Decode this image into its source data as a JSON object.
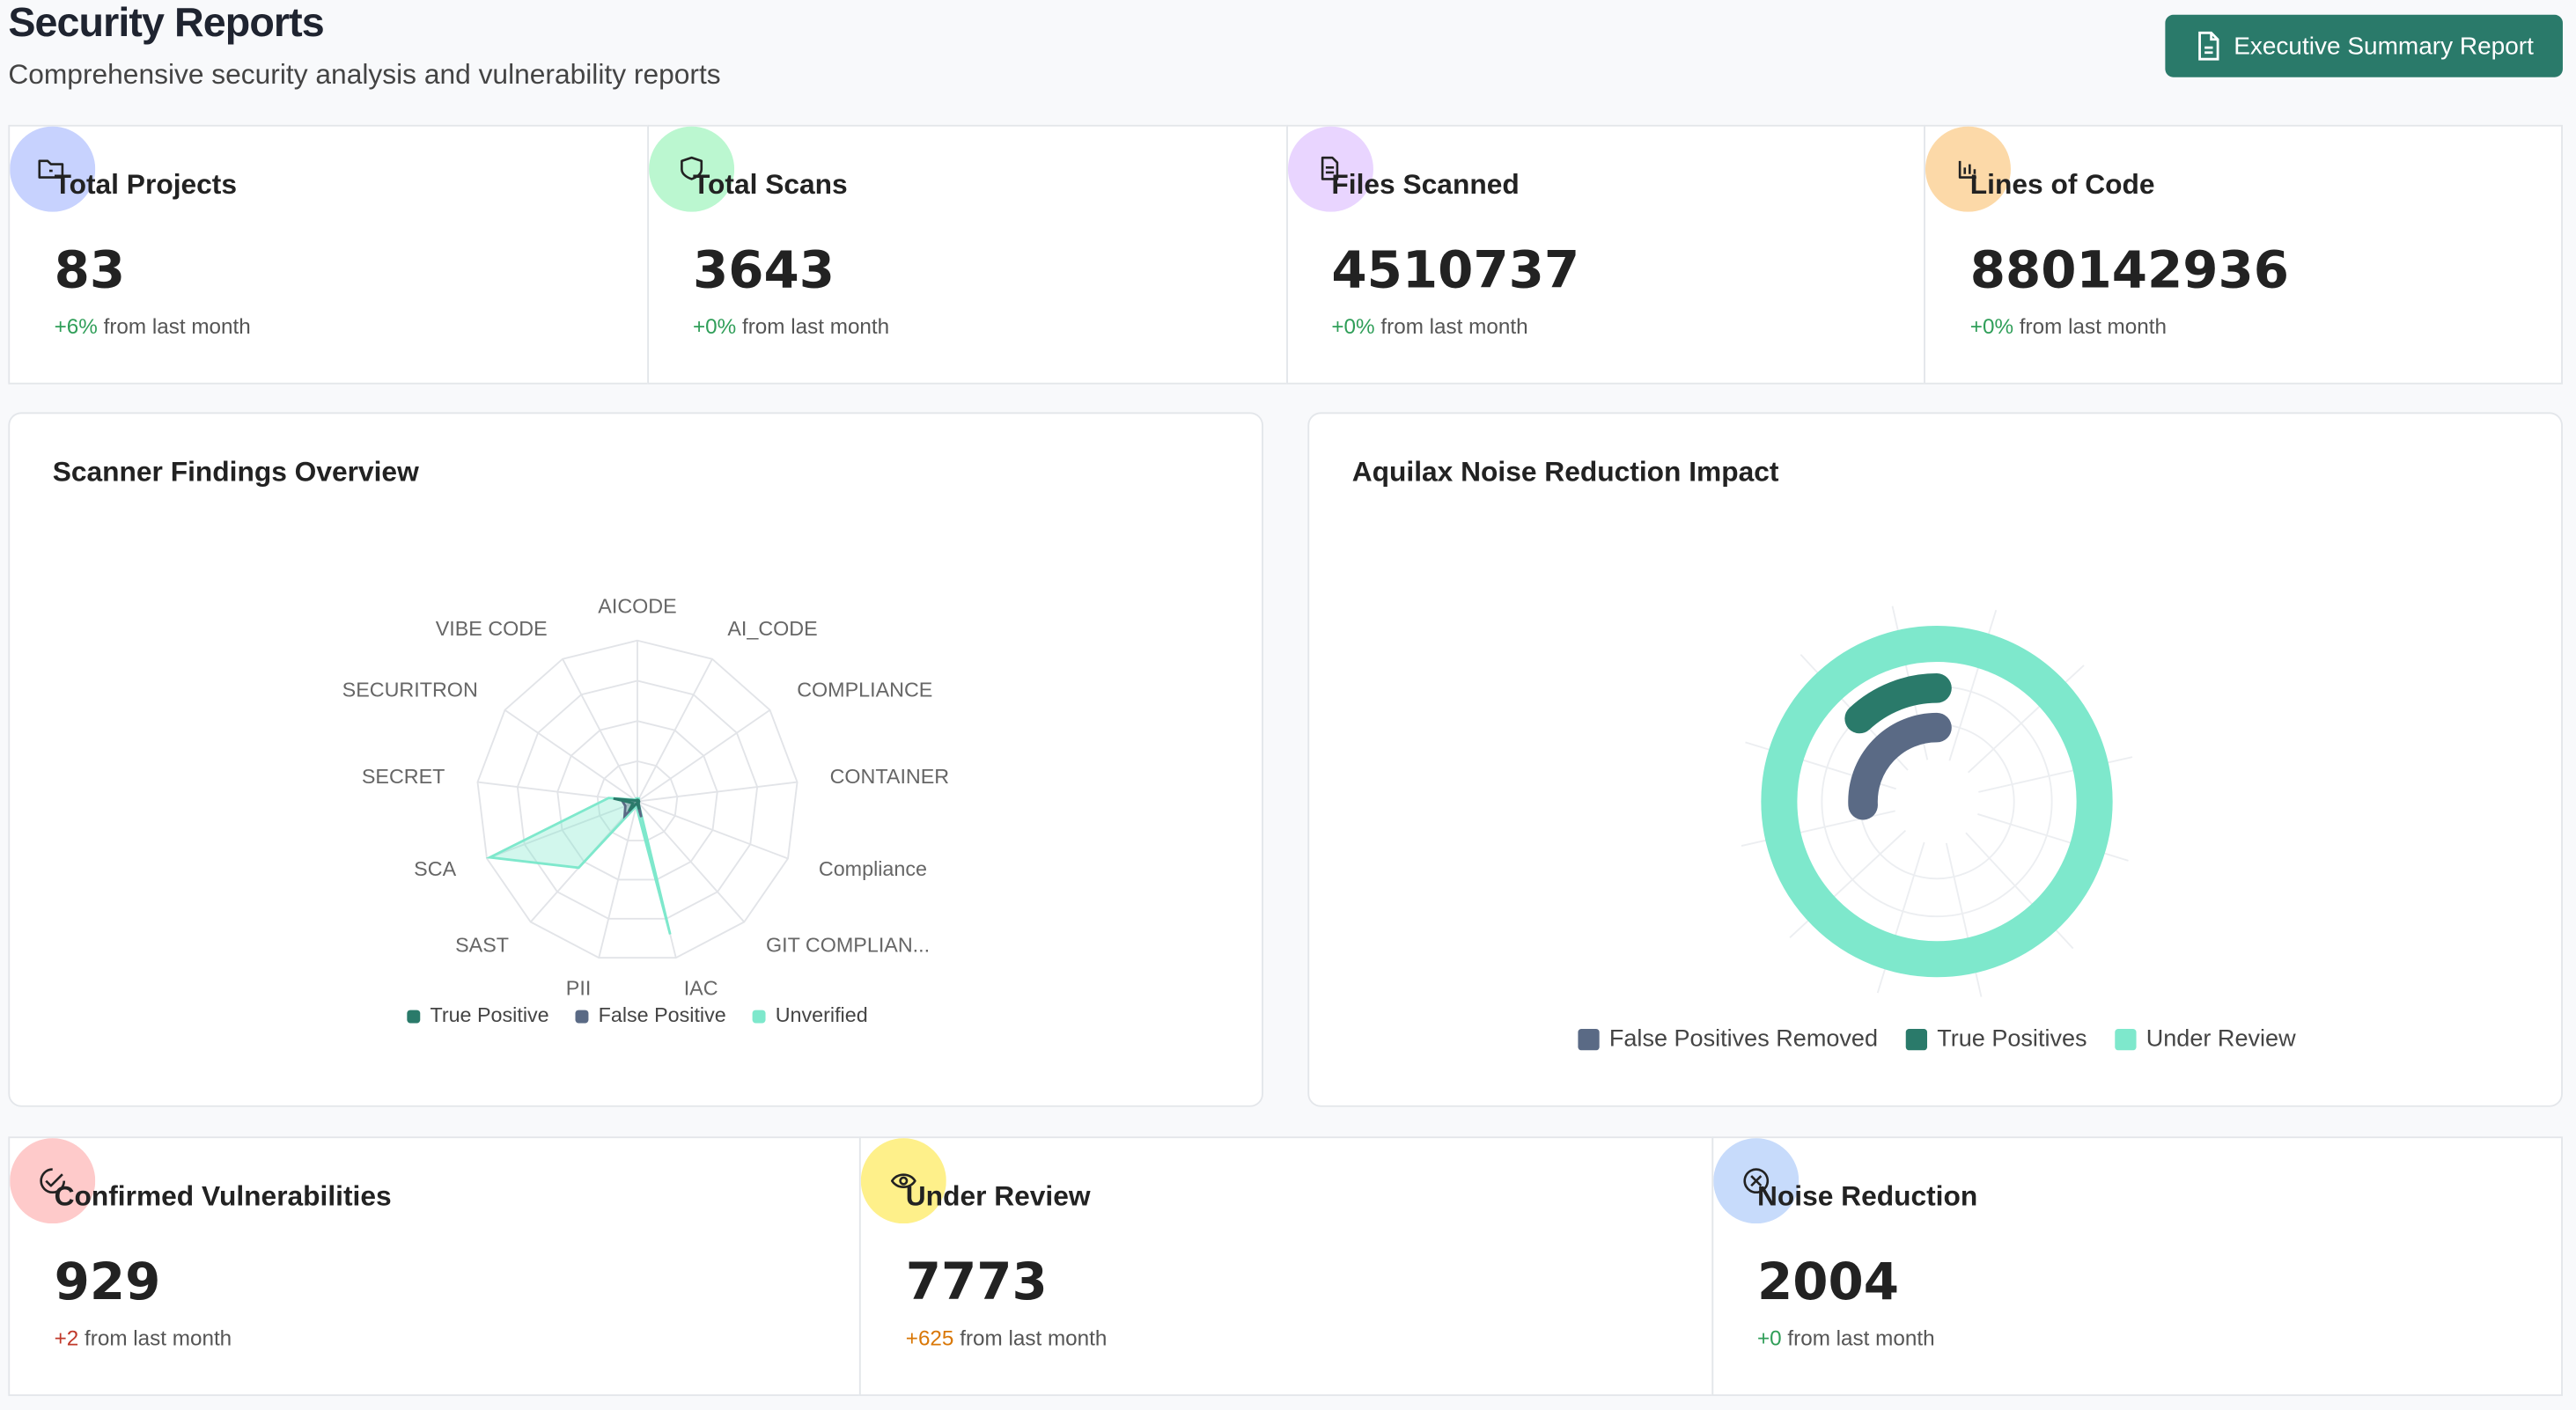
{
  "header": {
    "title": "Security Reports",
    "subtitle": "Comprehensive security analysis and vulnerability reports",
    "button": "Executive Summary Report"
  },
  "stats": [
    {
      "title": "Total Projects",
      "value": 83,
      "change": "+6%",
      "note": "from last month",
      "color": "#c7d2fe",
      "change_color": "#2f9e58"
    },
    {
      "title": "Total Scans",
      "value": 3643,
      "change": "+0%",
      "note": "from last month",
      "color": "#bbf7d0",
      "change_color": "#2f9e58"
    },
    {
      "title": "Files Scanned",
      "value": 4510737,
      "change": "+0%",
      "note": "from last month",
      "color": "#e9d5ff",
      "change_color": "#2f9e58"
    },
    {
      "title": "Lines of Code",
      "value": 880142936,
      "change": "+0%",
      "note": "from last month",
      "color": "#fcd9a8",
      "change_color": "#2f9e58"
    }
  ],
  "bottom_stats": [
    {
      "title": "Confirmed Vulnerabilities",
      "value": 929,
      "change": "+2",
      "note": "from last month",
      "color": "#fecaca",
      "change_color": "#c0392b"
    },
    {
      "title": "Under Review",
      "value": 7773,
      "change": "+625",
      "note": "from last month",
      "color": "#fef08a",
      "change_color": "#d97706"
    },
    {
      "title": "Noise Reduction",
      "value": 2004,
      "change": "+0",
      "note": "from last month",
      "color": "#c7dbfb",
      "change_color": "#2f9e58"
    }
  ],
  "chart_data": [
    {
      "type": "radar",
      "title": "Scanner Findings Overview",
      "categories": [
        "AICODE",
        "AI_CODE",
        "COMPLIANCE",
        "CONTAINER",
        "Compliance",
        "GIT COMPLIAN...",
        "IAC",
        "PII",
        "SAST",
        "SCA",
        "SECRET",
        "SECURITRON",
        "VIBE CODE"
      ],
      "rlim": [
        0,
        100
      ],
      "rticks": [
        25,
        50,
        75,
        100
      ],
      "series": [
        {
          "name": "True Positive",
          "color": "#2a7a6a",
          "values": [
            1,
            1,
            1,
            1,
            1,
            1,
            5,
            1,
            8,
            3,
            15,
            1,
            1
          ]
        },
        {
          "name": "False Positive",
          "color": "#5a6a85",
          "values": [
            1,
            1,
            1,
            1,
            1,
            1,
            10,
            1,
            12,
            8,
            10,
            1,
            1
          ]
        },
        {
          "name": "Unverified",
          "color": "#7ee8cc",
          "values": [
            2,
            2,
            1,
            1,
            1,
            1,
            85,
            3,
            55,
            98,
            18,
            2,
            2
          ]
        }
      ]
    },
    {
      "type": "radial-bar",
      "title": "Aquilax Noise Reduction Impact",
      "series": [
        {
          "name": "False Positives Removed",
          "color": "#5a6a85",
          "values": [
            2004
          ]
        },
        {
          "name": "True Positives",
          "color": "#2a7a6a",
          "values": [
            929
          ]
        },
        {
          "name": "Under Review",
          "color": "#7ee8cc",
          "values": [
            7773
          ]
        }
      ]
    }
  ]
}
